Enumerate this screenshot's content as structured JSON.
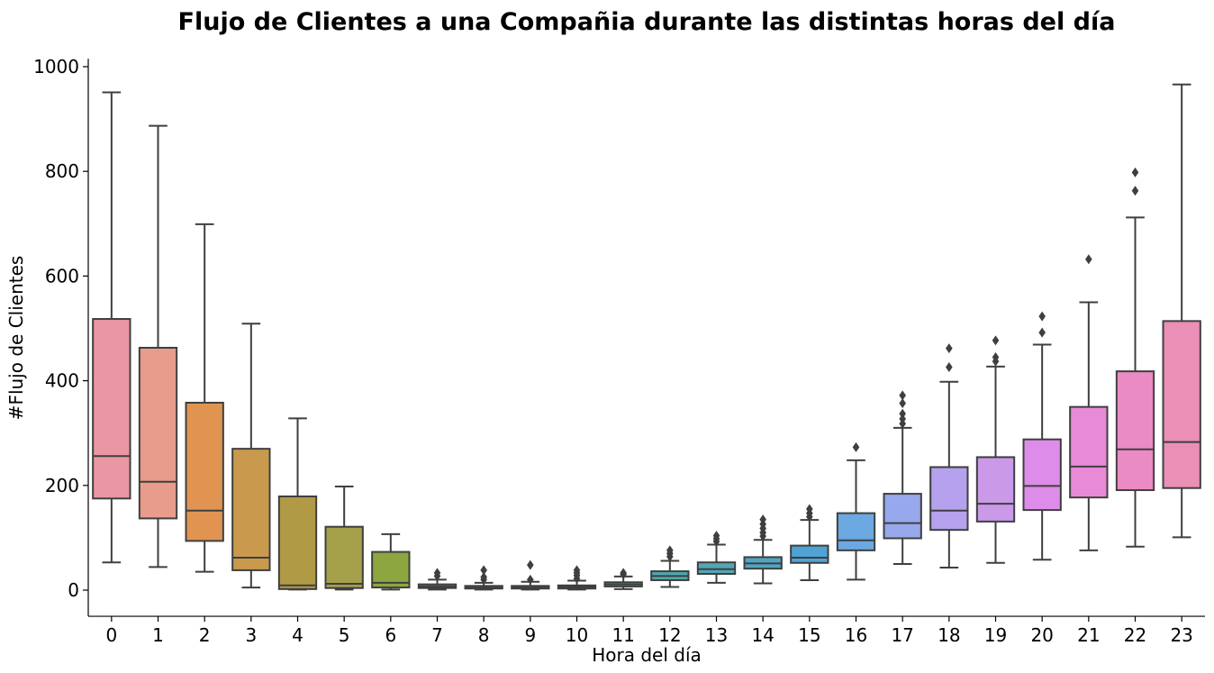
{
  "chart_data": {
    "type": "box",
    "title": "Flujo de Clientes a una Compañia durante las distintas horas del día",
    "xlabel": "Hora del día",
    "ylabel": "#Flujo de Clientes",
    "ylim": [
      -50,
      1015
    ],
    "yticks": [
      "0",
      "200",
      "400",
      "600",
      "800",
      "1000"
    ],
    "grid": false,
    "line_color": "#3f3f3f",
    "boxes": [
      {
        "hour": "0",
        "whisker_low": 53,
        "q1": 175,
        "median": 256,
        "q3": 518,
        "whisker_high": 951,
        "outliers": [],
        "color": "#ea96a3"
      },
      {
        "hour": "1",
        "whisker_low": 44,
        "q1": 137,
        "median": 207,
        "q3": 463,
        "whisker_high": 887,
        "outliers": [],
        "color": "#e89c8b"
      },
      {
        "hour": "2",
        "whisker_low": 35,
        "q1": 94,
        "median": 152,
        "q3": 358,
        "whisker_high": 699,
        "outliers": [],
        "color": "#e19452"
      },
      {
        "hour": "3",
        "whisker_low": 5,
        "q1": 38,
        "median": 62,
        "q3": 270,
        "whisker_high": 509,
        "outliers": [],
        "color": "#c99a4e"
      },
      {
        "hour": "4",
        "whisker_low": 1,
        "q1": 2,
        "median": 9,
        "q3": 179,
        "whisker_high": 328,
        "outliers": [],
        "color": "#b09a46"
      },
      {
        "hour": "5",
        "whisker_low": 1,
        "q1": 4,
        "median": 12,
        "q3": 121,
        "whisker_high": 198,
        "outliers": [],
        "color": "#a5a14a"
      },
      {
        "hour": "6",
        "whisker_low": 1,
        "q1": 5,
        "median": 14,
        "q3": 73,
        "whisker_high": 107,
        "outliers": [],
        "color": "#8ea640"
      },
      {
        "hour": "7",
        "whisker_low": 1,
        "q1": 4,
        "median": 7,
        "q3": 11,
        "whisker_high": 20,
        "outliers": [
          27,
          33
        ],
        "color": "#6aaa45"
      },
      {
        "hour": "8",
        "whisker_low": 1,
        "q1": 3,
        "median": 5,
        "q3": 8,
        "whisker_high": 14,
        "outliers": [
          20,
          25,
          38
        ],
        "color": "#4eac59"
      },
      {
        "hour": "9",
        "whisker_low": 1,
        "q1": 3,
        "median": 5,
        "q3": 8,
        "whisker_high": 16,
        "outliers": [
          20,
          48
        ],
        "color": "#51ad79"
      },
      {
        "hour": "10",
        "whisker_low": 1,
        "q1": 3,
        "median": 6,
        "q3": 9,
        "whisker_high": 18,
        "outliers": [
          22,
          28,
          33,
          38
        ],
        "color": "#50ad8d"
      },
      {
        "hour": "11",
        "whisker_low": 2,
        "q1": 7,
        "median": 11,
        "q3": 15,
        "whisker_high": 26,
        "outliers": [
          30,
          33
        ],
        "color": "#4fad9f"
      },
      {
        "hour": "12",
        "whisker_low": 6,
        "q1": 19,
        "median": 27,
        "q3": 36,
        "whisker_high": 56,
        "outliers": [
          64,
          70,
          76
        ],
        "color": "#4ea9ad"
      },
      {
        "hour": "13",
        "whisker_low": 14,
        "q1": 31,
        "median": 40,
        "q3": 53,
        "whisker_high": 87,
        "outliers": [
          93,
          98,
          104
        ],
        "color": "#51a7b7"
      },
      {
        "hour": "14",
        "whisker_low": 13,
        "q1": 41,
        "median": 51,
        "q3": 63,
        "whisker_high": 96,
        "outliers": [
          103,
          110,
          118,
          126,
          135
        ],
        "color": "#50a5c3"
      },
      {
        "hour": "15",
        "whisker_low": 19,
        "q1": 52,
        "median": 62,
        "q3": 85,
        "whisker_high": 134,
        "outliers": [
          140,
          147,
          155
        ],
        "color": "#4ea3d3"
      },
      {
        "hour": "16",
        "whisker_low": 20,
        "q1": 76,
        "median": 95,
        "q3": 147,
        "whisker_high": 248,
        "outliers": [
          273
        ],
        "color": "#6ca8e2"
      },
      {
        "hour": "17",
        "whisker_low": 50,
        "q1": 99,
        "median": 128,
        "q3": 184,
        "whisker_high": 310,
        "outliers": [
          318,
          327,
          337,
          357,
          372
        ],
        "color": "#97a8ec"
      },
      {
        "hour": "18",
        "whisker_low": 43,
        "q1": 115,
        "median": 152,
        "q3": 235,
        "whisker_high": 398,
        "outliers": [
          426,
          462
        ],
        "color": "#b5a1ed"
      },
      {
        "hour": "19",
        "whisker_low": 52,
        "q1": 131,
        "median": 165,
        "q3": 254,
        "whisker_high": 427,
        "outliers": [
          437,
          445,
          477
        ],
        "color": "#ca9ae9"
      },
      {
        "hour": "20",
        "whisker_low": 58,
        "q1": 153,
        "median": 199,
        "q3": 288,
        "whisker_high": 469,
        "outliers": [
          492,
          523
        ],
        "color": "#de8ce9"
      },
      {
        "hour": "21",
        "whisker_low": 76,
        "q1": 177,
        "median": 236,
        "q3": 350,
        "whisker_high": 550,
        "outliers": [
          632
        ],
        "color": "#e88ad6"
      },
      {
        "hour": "22",
        "whisker_low": 83,
        "q1": 191,
        "median": 269,
        "q3": 418,
        "whisker_high": 712,
        "outliers": [
          763,
          798
        ],
        "color": "#ea8bc4"
      },
      {
        "hour": "23",
        "whisker_low": 101,
        "q1": 195,
        "median": 283,
        "q3": 514,
        "whisker_high": 966,
        "outliers": [],
        "color": "#ea8fb5"
      }
    ]
  }
}
